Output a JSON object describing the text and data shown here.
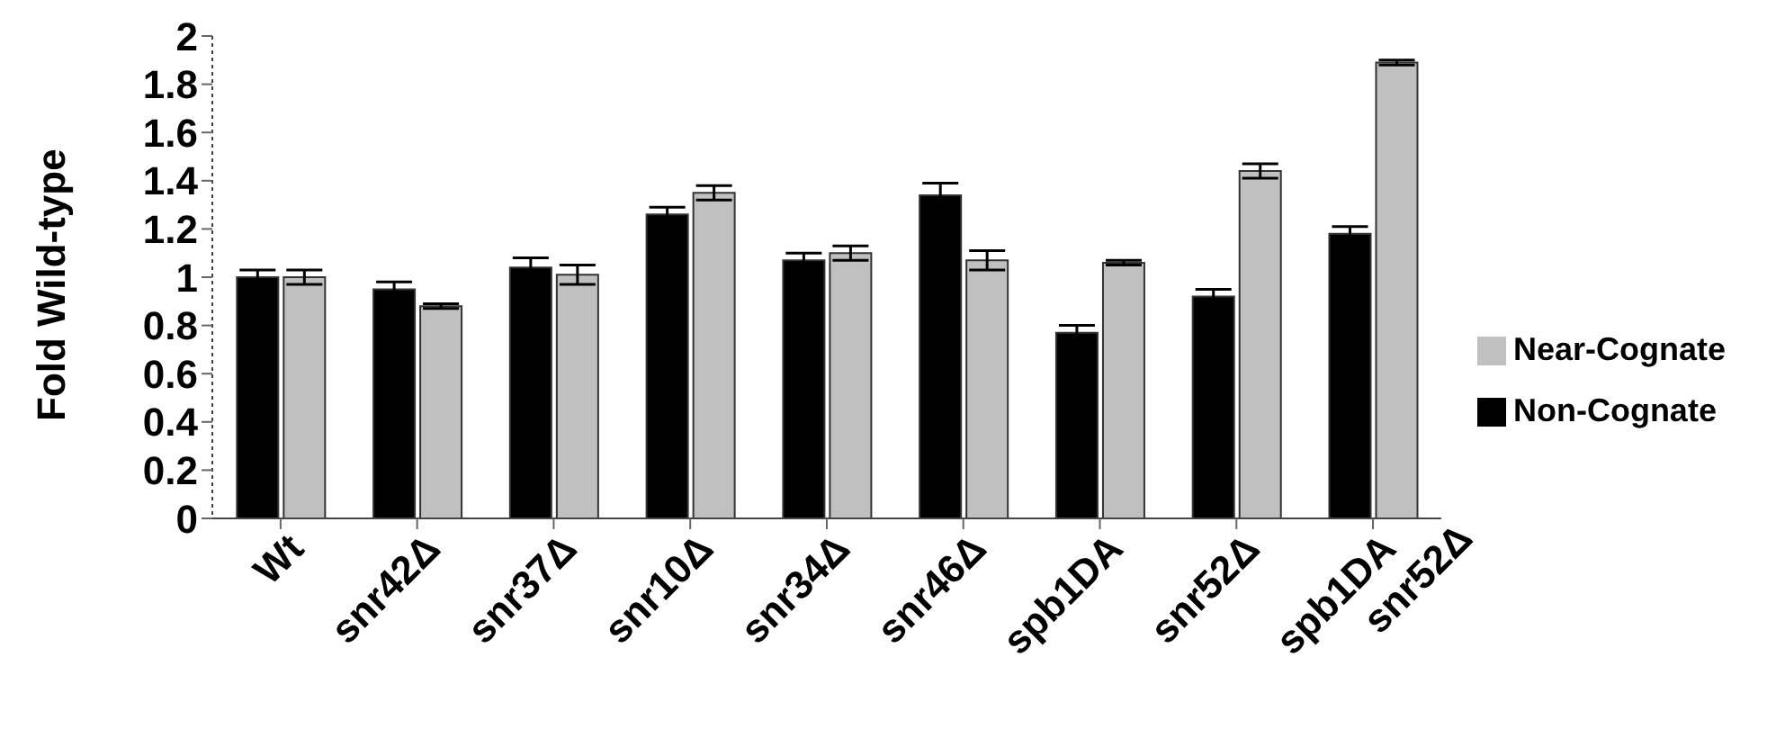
{
  "chart_data": {
    "type": "bar",
    "ylabel": "Fold Wild-type",
    "categories": [
      "Wt",
      "snr42Δ",
      "snr37Δ",
      "snr10Δ",
      "snr34Δ",
      "snr46Δ",
      "spb1DA",
      "snr52Δ",
      "spb1DA snr52Δ"
    ],
    "series": [
      {
        "name": "Non-Cognate",
        "color": "#000000",
        "values": [
          1.0,
          0.95,
          1.04,
          1.26,
          1.07,
          1.34,
          0.77,
          0.92,
          1.18
        ],
        "errors": [
          0.03,
          0.03,
          0.04,
          0.03,
          0.03,
          0.05,
          0.03,
          0.03,
          0.03
        ]
      },
      {
        "name": "Near-Cognate",
        "color": "#c0c0c0",
        "values": [
          1.0,
          0.88,
          1.01,
          1.35,
          1.1,
          1.07,
          1.06,
          1.44,
          1.89
        ],
        "errors": [
          0.03,
          0.01,
          0.04,
          0.03,
          0.03,
          0.04,
          0.01,
          0.03,
          0.01
        ]
      }
    ],
    "ylim": [
      0,
      2
    ],
    "yticks": [
      0,
      0.2,
      0.4,
      0.6,
      0.8,
      1,
      1.2,
      1.4,
      1.6,
      1.8,
      2
    ],
    "grid": false,
    "legend": "right"
  }
}
